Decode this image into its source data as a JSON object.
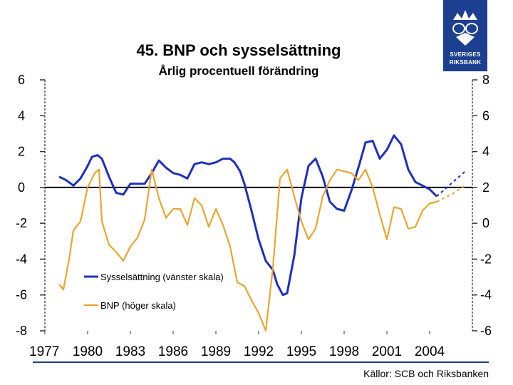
{
  "chart_data": {
    "type": "line",
    "title": "45. BNP och sysselsättning",
    "subtitle": "Årlig procentuell förändring",
    "source": "Källor: SCB och Riksbanken",
    "x_ticks": [
      "1977",
      "1980",
      "1983",
      "1986",
      "1989",
      "1992",
      "1995",
      "1998",
      "2001",
      "2004"
    ],
    "xlim": [
      1977,
      2007
    ],
    "left_axis": {
      "ylim": [
        -8,
        6
      ],
      "ticks": [
        "6",
        "4",
        "2",
        "0",
        "-2",
        "-4",
        "-6",
        "-8"
      ]
    },
    "right_axis": {
      "ylim": [
        -6,
        8
      ],
      "ticks": [
        "8",
        "6",
        "4",
        "2",
        "0",
        "-2",
        "-4",
        "-6"
      ]
    },
    "series": [
      {
        "name": "Sysselsättning (vänster skala)",
        "axis": "left",
        "color": "#1f2fbf",
        "x": [
          1978,
          1978.5,
          1979,
          1979.5,
          1980,
          1980.3,
          1980.7,
          1981,
          1981.5,
          1982,
          1982.5,
          1983,
          1983.5,
          1984,
          1984.5,
          1985,
          1985.5,
          1986,
          1986.5,
          1987,
          1987.5,
          1988,
          1988.5,
          1989,
          1989.5,
          1990,
          1990.3,
          1990.7,
          1991,
          1991.5,
          1992,
          1992.5,
          1993,
          1993.3,
          1993.7,
          1994,
          1994.5,
          1995,
          1995.5,
          1996,
          1996.5,
          1997,
          1997.5,
          1998,
          1998.5,
          1999,
          1999.5,
          2000,
          2000.5,
          2001,
          2001.5,
          2002,
          2002.5,
          2003,
          2003.5,
          2004,
          2004.5
        ],
        "values": [
          0.6,
          0.4,
          0.1,
          0.5,
          1.2,
          1.7,
          1.8,
          1.6,
          0.6,
          -0.3,
          -0.4,
          0.2,
          0.2,
          0.2,
          0.8,
          1.5,
          1.1,
          0.8,
          0.7,
          0.5,
          1.3,
          1.4,
          1.3,
          1.4,
          1.6,
          1.6,
          1.4,
          0.9,
          0.2,
          -1.3,
          -2.9,
          -4.1,
          -4.6,
          -5.4,
          -6,
          -5.9,
          -3.8,
          -0.6,
          1.2,
          1.6,
          0.6,
          -0.8,
          -1.2,
          -1.3,
          -0.2,
          1.1,
          2.5,
          2.6,
          1.6,
          2.1,
          2.9,
          2.4,
          1,
          0.3,
          0.1,
          -0.1,
          -0.5
        ],
        "projection": {
          "x": [
            2004.5,
            2005.5,
            2006.5
          ],
          "values": [
            -0.5,
            0.2,
            0.9
          ]
        }
      },
      {
        "name": "BNP (höger skala)",
        "axis": "right",
        "color": "#e8a630",
        "x": [
          1978,
          1978.3,
          1978.7,
          1979,
          1979.5,
          1980,
          1980.5,
          1980.8,
          1981,
          1981.5,
          1982,
          1982.5,
          1983,
          1983.5,
          1984,
          1984.5,
          1985,
          1985.5,
          1986,
          1986.5,
          1987,
          1987.5,
          1988,
          1988.5,
          1989,
          1989.5,
          1990,
          1990.5,
          1991,
          1991.5,
          1992,
          1992.5,
          1993,
          1993.5,
          1994,
          1994.5,
          1995,
          1995.5,
          1996,
          1996.5,
          1997,
          1997.5,
          1998,
          1998.5,
          1999,
          1999.5,
          2000,
          2000.5,
          2001,
          2001.5,
          2002,
          2002.5,
          2003,
          2003.5,
          2004,
          2004.5
        ],
        "values": [
          -3.4,
          -3.7,
          -2,
          -0.4,
          0.1,
          2,
          2.8,
          3,
          0.1,
          -1.2,
          -1.6,
          -2.1,
          -1.3,
          -0.8,
          0.2,
          3,
          1.4,
          0.3,
          0.8,
          0.8,
          -0.1,
          1.4,
          1,
          -0.2,
          0.8,
          -0.1,
          -1.3,
          -3.3,
          -3.5,
          -4.3,
          -5,
          -6,
          -2.5,
          2.5,
          3,
          1.5,
          0.1,
          -0.9,
          -0.3,
          1.5,
          2.4,
          3,
          2.9,
          2.8,
          2.4,
          3,
          2,
          0.5,
          -0.9,
          0.9,
          0.8,
          -0.3,
          -0.2,
          0.7,
          1.1,
          1.2
        ],
        "projection": {
          "x": [
            2004.5,
            2005.5,
            2006.5
          ],
          "values": [
            1.2,
            1.6,
            2.1
          ]
        }
      }
    ],
    "legend": [
      {
        "label": "Sysselsättning (vänster skala)",
        "color": "#1f2fbf"
      },
      {
        "label": "BNP (höger skala)",
        "color": "#e8a630"
      }
    ]
  },
  "logo": {
    "line1": "SVERIGES",
    "line2": "RIKSBANK"
  }
}
